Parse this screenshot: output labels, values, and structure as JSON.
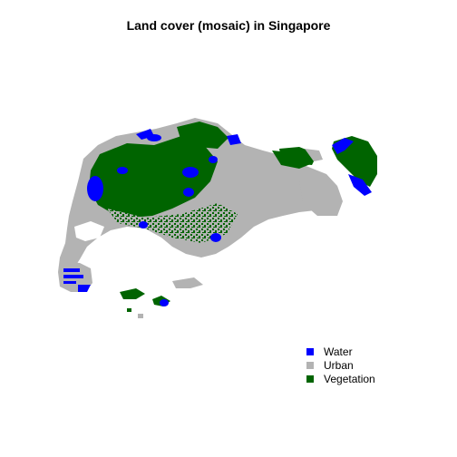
{
  "title": "Land cover (mosaic) in Singapore",
  "legend": [
    {
      "label": "Water",
      "color": "#0000ff"
    },
    {
      "label": "Urban",
      "color": "#b3b3b3"
    },
    {
      "label": "Vegetation",
      "color": "#006400"
    }
  ],
  "colors": {
    "background": "#ffffff",
    "water": "#0000ff",
    "urban": "#b3b3b3",
    "vegetation": "#006400"
  }
}
